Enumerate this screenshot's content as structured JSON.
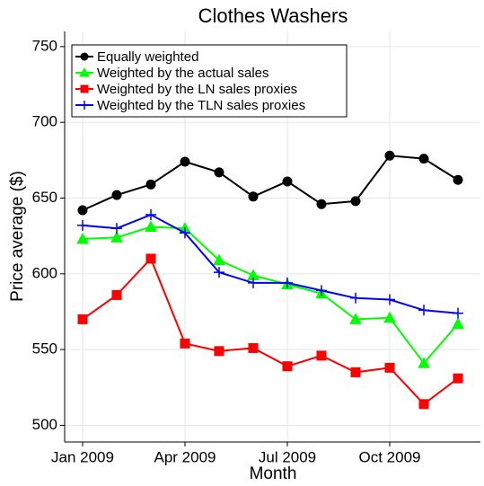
{
  "chart_data": {
    "type": "line",
    "title": "Clothes Washers",
    "x_label": "Month",
    "y_label": "Price average ($)",
    "categories": [
      "Jan 2009",
      null,
      null,
      "Apr 2009",
      null,
      null,
      "Jul 2009",
      null,
      null,
      "Oct 2009",
      null,
      null
    ],
    "ylim": [
      489,
      760
    ],
    "yticks": [
      500,
      550,
      600,
      650,
      700,
      750
    ],
    "grid": true,
    "legend": "top-left",
    "series": [
      {
        "name": "Equally weighted",
        "color": "#000000",
        "marker": "circle",
        "values": [
          642,
          652,
          659,
          674,
          667,
          651,
          661,
          646,
          648,
          678,
          676,
          662
        ]
      },
      {
        "name": "Weighted by the actual sales",
        "color": "#00ff00",
        "marker": "triangle",
        "values": [
          623,
          624,
          631,
          630,
          609,
          599,
          593,
          587,
          570,
          571,
          541,
          567
        ]
      },
      {
        "name": "Weighted by the LN sales proxies",
        "color": "#ff0000",
        "marker": "square",
        "values": [
          570,
          586,
          610,
          554,
          549,
          551,
          539,
          546,
          535,
          538,
          514,
          531
        ]
      },
      {
        "name": "Weighted by the TLN sales proxies",
        "color": "#0000ff",
        "marker": "plus",
        "values": [
          632,
          630,
          639,
          627,
          601,
          594,
          594,
          589,
          584,
          583,
          576,
          574
        ]
      }
    ]
  }
}
